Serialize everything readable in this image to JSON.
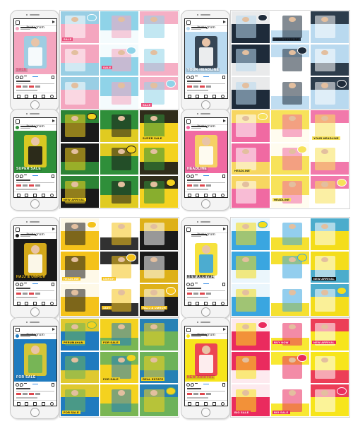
{
  "phone": {
    "app_title": "Instagram",
    "icons": [
      "camera-icon",
      "send-icon",
      "heart-icon",
      "comment-icon",
      "share-icon",
      "bookmark-icon",
      "home-icon",
      "search-icon",
      "add-icon",
      "like-icon",
      "profile-icon"
    ]
  },
  "sets": [
    {
      "name": "fashion-pink",
      "colors": {
        "a": "#f4a6bf",
        "b": "#8fd3e8",
        "c": "#ffffff",
        "text": "#e94c7a"
      },
      "post_label": "SALE",
      "labels": [
        "SALE",
        "SALE",
        "SALE"
      ]
    },
    {
      "name": "men-fashion-blue",
      "colors": {
        "a": "#b9d9ef",
        "b": "#1e2b3a",
        "c": "#ffffff",
        "text": "#ffffff"
      },
      "post_label": "YOUR HEADLINE",
      "labels": [
        "YOUR HEADLINE"
      ]
    },
    {
      "name": "super-sale-green",
      "colors": {
        "a": "#2f8f3a",
        "b": "#f4d21f",
        "c": "#1a1a1a",
        "text": "#ffffff"
      },
      "post_label": "SUPER SALE",
      "labels": [
        "SUPER SALE",
        "NEW ARRIVAL"
      ]
    },
    {
      "name": "pink-headline",
      "colors": {
        "a": "#f06aa2",
        "b": "#f7e25a",
        "c": "#ffffff",
        "text": "#ffffff"
      },
      "post_label": "HEADLINE",
      "labels": [
        "HEADLINE",
        "HEADLINE",
        "YOUR HEADLINE"
      ]
    },
    {
      "name": "umroh-black",
      "colors": {
        "a": "#1b1b1b",
        "b": "#f4c21a",
        "c": "#ffffff",
        "text": "#f4c21a"
      },
      "post_label": "HAJJ & UMROH",
      "labels": [
        "UMROH",
        "HAJJ & UMROH",
        "HEADLINE",
        "13JT"
      ]
    },
    {
      "name": "new-arrival-white",
      "colors": {
        "a": "#ffffff",
        "b": "#f4dd1b",
        "c": "#3aa6e0",
        "text": "#111111"
      },
      "post_label": "NEW ARRIVAL",
      "labels": [
        "NEW ARRIVAL"
      ]
    },
    {
      "name": "real-estate",
      "colors": {
        "a": "#1f7bbf",
        "b": "#f4d21f",
        "c": "#6db25a",
        "text": "#ffffff"
      },
      "post_label": "FOR SALE",
      "labels": [
        "FOR SALE",
        "FOR SALE",
        "REAL ESTATE",
        "PERUMAHAN",
        "FOR SALE"
      ]
    },
    {
      "name": "big-sale-yellow",
      "colors": {
        "a": "#f7e51c",
        "b": "#ea2b5e",
        "c": "#ffffff",
        "text": "#ea2b5e"
      },
      "post_label": "NEW ARRIVAL",
      "labels": [
        "BIG SALE",
        "NEW ARRIVAL",
        "BIG SALE",
        "BUY NOW"
      ]
    }
  ]
}
